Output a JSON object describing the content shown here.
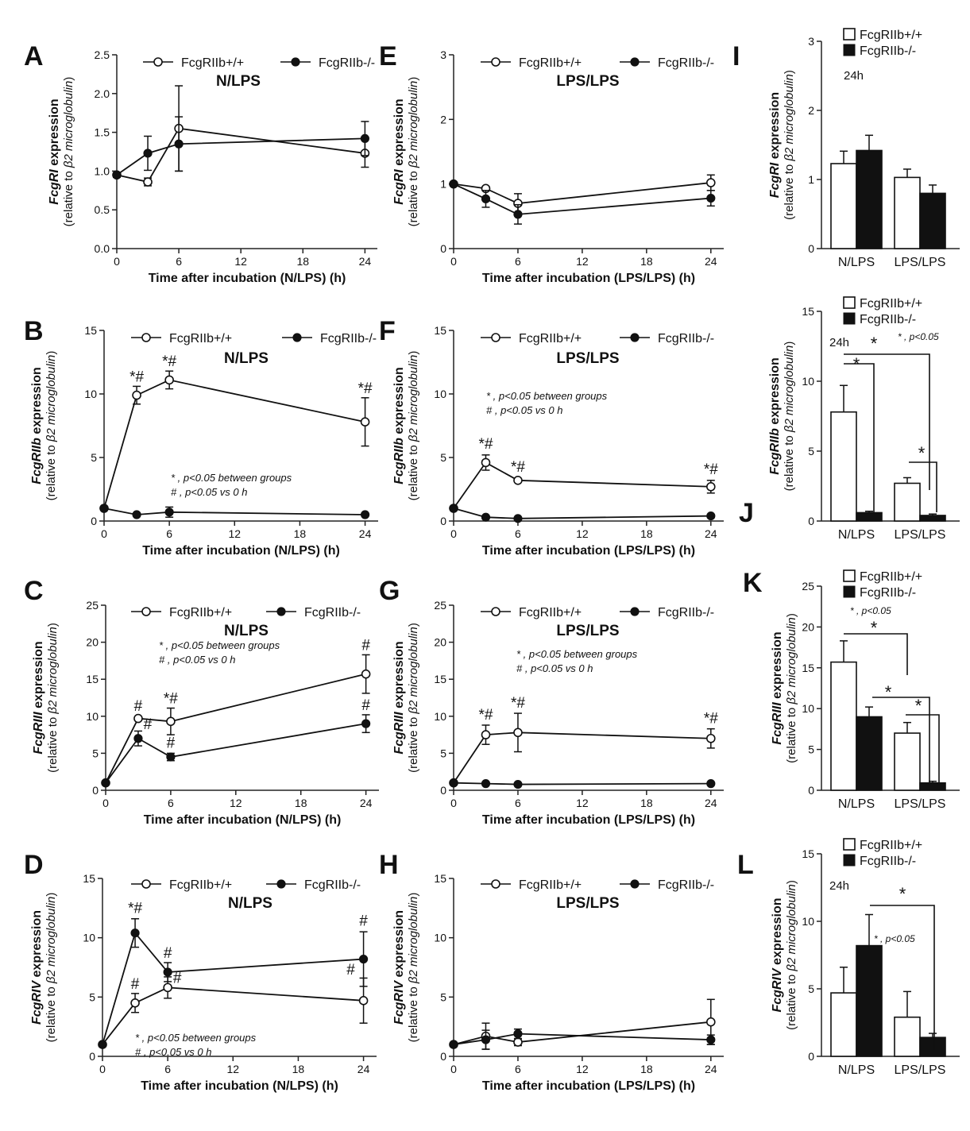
{
  "legend": {
    "wt": "FcgRIIb+/+",
    "ko": "FcgRIIb-/-"
  },
  "annotations": {
    "between": ", p<0.05 between groups",
    "vs0": ", p<0.05 vs 0 h",
    "pstar": ", p<0.05",
    "star": "*",
    "hash": "#",
    "h24": "24h"
  },
  "axis": {
    "ylabel_expr": " expression",
    "ylabel_rel_a": "(relative to ",
    "ylabel_rel_b": "β2 microglobulin",
    "ylabel_rel_c": ")"
  },
  "chart_data": [
    {
      "id": "A",
      "type": "line",
      "genotype_label": "FcgRI",
      "condition": "N/LPS",
      "xlabel": "Time after incubation (N/LPS) (h)",
      "x": [
        0,
        3,
        6,
        24
      ],
      "xticks": [
        0,
        6,
        12,
        18,
        24
      ],
      "ylim": [
        0,
        2.5
      ],
      "yticks": [
        "0.0",
        "0.5",
        "1.0",
        "1.5",
        "2.0",
        "2.5"
      ],
      "series": [
        {
          "name": "FcgRIIb+/+",
          "values": [
            0.95,
            0.86,
            1.55,
            1.23
          ],
          "err": [
            0.03,
            0.05,
            0.55,
            0.18
          ]
        },
        {
          "name": "FcgRIIb-/-",
          "values": [
            0.95,
            1.23,
            1.35,
            1.42
          ],
          "err": [
            0.03,
            0.22,
            0.35,
            0.22
          ]
        }
      ],
      "marks": []
    },
    {
      "id": "B",
      "type": "line",
      "genotype_label": "FcgRIIb",
      "condition": "N/LPS",
      "xlabel": "Time after incubation (N/LPS) (h)",
      "x": [
        0,
        3,
        6,
        24
      ],
      "xticks": [
        0,
        6,
        12,
        18,
        24
      ],
      "ylim": [
        0,
        15
      ],
      "yticks": [
        "0",
        "5",
        "10",
        "15"
      ],
      "series": [
        {
          "name": "FcgRIIb+/+",
          "values": [
            1.0,
            9.9,
            11.1,
            7.8
          ],
          "err": [
            0.1,
            0.7,
            0.7,
            1.9
          ]
        },
        {
          "name": "FcgRIIb-/-",
          "values": [
            1.0,
            0.5,
            0.7,
            0.5
          ],
          "err": [
            0.1,
            0.1,
            0.4,
            0.1
          ]
        }
      ],
      "marks": [
        {
          "x": 3,
          "y": 10.6,
          "t": "*#"
        },
        {
          "x": 6,
          "y": 11.8,
          "t": "*#"
        },
        {
          "x": 24,
          "y": 9.7,
          "t": "*#"
        }
      ],
      "stats_note": true
    },
    {
      "id": "C",
      "type": "line",
      "genotype_label": "FcgRIII",
      "condition": "N/LPS",
      "xlabel": "Time after incubation (N/LPS) (h)",
      "x": [
        0,
        3,
        6,
        24
      ],
      "xticks": [
        0,
        6,
        12,
        18,
        24
      ],
      "ylim": [
        0,
        25
      ],
      "yticks": [
        "0",
        "5",
        "10",
        "15",
        "20",
        "25"
      ],
      "series": [
        {
          "name": "FcgRIIb+/+",
          "values": [
            1.0,
            9.7,
            9.3,
            15.7
          ],
          "err": [
            0.2,
            0.2,
            1.8,
            2.6
          ]
        },
        {
          "name": "FcgRIIb-/-",
          "values": [
            1.0,
            7.0,
            4.5,
            9.0
          ],
          "err": [
            0.2,
            1.0,
            0.5,
            1.2
          ]
        }
      ],
      "marks": [
        {
          "x": 3,
          "y": 10.1,
          "t": "#"
        },
        {
          "x": 3,
          "y": 7.6,
          "t": "#",
          "dx": 12
        },
        {
          "x": 6,
          "y": 11.1,
          "t": "*#"
        },
        {
          "x": 6,
          "y": 5.1,
          "t": "#"
        },
        {
          "x": 24,
          "y": 18.3,
          "t": "#"
        },
        {
          "x": 24,
          "y": 10.2,
          "t": "#"
        }
      ],
      "stats_note": true
    },
    {
      "id": "D",
      "type": "line",
      "genotype_label": "FcgRIV",
      "condition": "N/LPS",
      "xlabel": "Time after incubation (N/LPS) (h)",
      "x": [
        0,
        3,
        6,
        24
      ],
      "xticks": [
        0,
        6,
        12,
        18,
        24
      ],
      "ylim": [
        0,
        15
      ],
      "yticks": [
        "0",
        "5",
        "10",
        "15"
      ],
      "series": [
        {
          "name": "FcgRIIb+/+",
          "values": [
            1.0,
            4.5,
            5.8,
            4.7
          ],
          "err": [
            0.1,
            0.8,
            0.9,
            1.9
          ]
        },
        {
          "name": "FcgRIIb-/-",
          "values": [
            1.0,
            10.4,
            7.1,
            8.2
          ],
          "err": [
            0.1,
            1.2,
            0.8,
            2.3
          ]
        }
      ],
      "marks": [
        {
          "x": 3,
          "y": 11.7,
          "t": "*#"
        },
        {
          "x": 3,
          "y": 5.3,
          "t": "#"
        },
        {
          "x": 6,
          "y": 7.9,
          "t": "#"
        },
        {
          "x": 6,
          "y": 5.8,
          "t": "#",
          "dx": 12
        },
        {
          "x": 24,
          "y": 10.6,
          "t": "#"
        },
        {
          "x": 24,
          "y": 6.5,
          "t": "#",
          "dx": -16
        }
      ],
      "stats_note": true
    },
    {
      "id": "E",
      "type": "line",
      "genotype_label": "FcgRI",
      "condition": "LPS/LPS",
      "xlabel": "Time after incubation (LPS/LPS) (h)",
      "x": [
        0,
        3,
        6,
        24
      ],
      "xticks": [
        0,
        6,
        12,
        18,
        24
      ],
      "ylim": [
        0,
        3
      ],
      "yticks": [
        "0",
        "1",
        "2",
        "3"
      ],
      "series": [
        {
          "name": "FcgRIIb+/+",
          "values": [
            1.0,
            0.93,
            0.7,
            1.02
          ],
          "err": [
            0.02,
            0.03,
            0.15,
            0.12
          ]
        },
        {
          "name": "FcgRIIb-/-",
          "values": [
            1.0,
            0.77,
            0.53,
            0.78
          ],
          "err": [
            0.02,
            0.13,
            0.15,
            0.12
          ]
        }
      ],
      "marks": []
    },
    {
      "id": "F",
      "type": "line",
      "genotype_label": "FcgRIIb",
      "condition": "LPS/LPS",
      "xlabel": "Time after incubation (LPS/LPS) (h)",
      "x": [
        0,
        3,
        6,
        24
      ],
      "xticks": [
        0,
        6,
        12,
        18,
        24
      ],
      "ylim": [
        0,
        15
      ],
      "yticks": [
        "0",
        "5",
        "10",
        "15"
      ],
      "series": [
        {
          "name": "FcgRIIb+/+",
          "values": [
            1.0,
            4.6,
            3.2,
            2.7
          ],
          "err": [
            0.1,
            0.6,
            0.1,
            0.5
          ]
        },
        {
          "name": "FcgRIIb-/-",
          "values": [
            1.0,
            0.3,
            0.2,
            0.4
          ],
          "err": [
            0.1,
            0.05,
            0.05,
            0.05
          ]
        }
      ],
      "marks": [
        {
          "x": 3,
          "y": 5.3,
          "t": "*#"
        },
        {
          "x": 6,
          "y": 3.5,
          "t": "*#"
        },
        {
          "x": 24,
          "y": 3.3,
          "t": "*#"
        }
      ],
      "stats_note": true
    },
    {
      "id": "G",
      "type": "line",
      "genotype_label": "FcgRIII",
      "condition": "LPS/LPS",
      "xlabel": "Time after incubation (LPS/LPS) (h)",
      "x": [
        0,
        3,
        6,
        24
      ],
      "xticks": [
        0,
        6,
        12,
        18,
        24
      ],
      "ylim": [
        0,
        25
      ],
      "yticks": [
        "0",
        "5",
        "10",
        "15",
        "20",
        "25"
      ],
      "series": [
        {
          "name": "FcgRIIb+/+",
          "values": [
            1.0,
            7.5,
            7.8,
            7.0
          ],
          "err": [
            0.1,
            1.3,
            2.6,
            1.3
          ]
        },
        {
          "name": "FcgRIIb-/-",
          "values": [
            1.0,
            0.9,
            0.8,
            0.9
          ],
          "err": [
            0.1,
            0.05,
            0.05,
            0.05
          ]
        }
      ],
      "marks": [
        {
          "x": 3,
          "y": 8.9,
          "t": "*#"
        },
        {
          "x": 6,
          "y": 10.5,
          "t": "*#"
        },
        {
          "x": 24,
          "y": 8.4,
          "t": "*#"
        }
      ],
      "stats_note": true
    },
    {
      "id": "H",
      "type": "line",
      "genotype_label": "FcgRIV",
      "condition": "LPS/LPS",
      "xlabel": "Time after incubation (LPS/LPS) (h)",
      "x": [
        0,
        3,
        6,
        24
      ],
      "xticks": [
        0,
        6,
        12,
        18,
        24
      ],
      "ylim": [
        0,
        15
      ],
      "yticks": [
        "0",
        "5",
        "10",
        "15"
      ],
      "series": [
        {
          "name": "FcgRIIb+/+",
          "values": [
            1.0,
            1.7,
            1.2,
            2.9
          ],
          "err": [
            0.1,
            1.1,
            0.3,
            1.9
          ]
        },
        {
          "name": "FcgRIIb-/-",
          "values": [
            1.0,
            1.4,
            1.9,
            1.4
          ],
          "err": [
            0.1,
            0.8,
            0.4,
            0.4
          ]
        }
      ],
      "marks": []
    },
    {
      "id": "I",
      "type": "bar",
      "genotype_label": "FcgRI",
      "categories": [
        "N/LPS",
        "LPS/LPS"
      ],
      "ylim": [
        0,
        3
      ],
      "yticks": [
        "0",
        "1",
        "2",
        "3"
      ],
      "series": [
        {
          "name": "FcgRIIb+/+",
          "values": [
            1.23,
            1.03
          ],
          "err": [
            0.18,
            0.12
          ]
        },
        {
          "name": "FcgRIIb-/-",
          "values": [
            1.42,
            0.8
          ],
          "err": [
            0.22,
            0.12
          ]
        }
      ]
    },
    {
      "id": "J",
      "type": "bar",
      "genotype_label": "FcgRIIb",
      "categories": [
        "N/LPS",
        "LPS/LPS"
      ],
      "ylim": [
        0,
        15
      ],
      "yticks": [
        "0",
        "5",
        "10",
        "15"
      ],
      "series": [
        {
          "name": "FcgRIIb+/+",
          "values": [
            7.8,
            2.7
          ],
          "err": [
            1.9,
            0.4
          ]
        },
        {
          "name": "FcgRIIb-/-",
          "values": [
            0.6,
            0.4
          ],
          "err": [
            0.1,
            0.1
          ]
        }
      ]
    },
    {
      "id": "K",
      "type": "bar",
      "genotype_label": "FcgRIII",
      "categories": [
        "N/LPS",
        "LPS/LPS"
      ],
      "ylim": [
        0,
        25
      ],
      "yticks": [
        "0",
        "5",
        "10",
        "15",
        "20",
        "25"
      ],
      "series": [
        {
          "name": "FcgRIIb+/+",
          "values": [
            15.7,
            7.0
          ],
          "err": [
            2.6,
            1.3
          ]
        },
        {
          "name": "FcgRIIb-/-",
          "values": [
            9.0,
            0.9
          ],
          "err": [
            1.2,
            0.2
          ]
        }
      ]
    },
    {
      "id": "L",
      "type": "bar",
      "genotype_label": "FcgRIV",
      "categories": [
        "N/LPS",
        "LPS/LPS"
      ],
      "ylim": [
        0,
        15
      ],
      "yticks": [
        "0",
        "5",
        "10",
        "15"
      ],
      "series": [
        {
          "name": "FcgRIIb+/+",
          "values": [
            4.7,
            2.9
          ],
          "err": [
            1.9,
            1.9
          ]
        },
        {
          "name": "FcgRIIb-/-",
          "values": [
            8.2,
            1.4
          ],
          "err": [
            2.3,
            0.3
          ]
        }
      ]
    }
  ]
}
